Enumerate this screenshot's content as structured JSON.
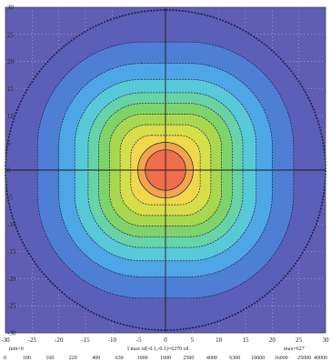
{
  "chart_data": {
    "type": "heatmap",
    "description_free": true,
    "x_ticks": [
      "-30",
      "-25",
      "-20",
      "-15",
      "-10",
      "-5",
      "0",
      "5",
      "10",
      "15",
      "20",
      "25",
      "30"
    ],
    "y_ticks": [
      "30",
      "25",
      "20",
      "15",
      "10",
      "5",
      "0",
      "-5",
      "-10",
      "-15",
      "-20",
      "-25",
      "-30"
    ],
    "xlim": [
      -30,
      30
    ],
    "ylim": [
      -30,
      30
    ],
    "grid": true,
    "min_label": "min=0",
    "max_label": "max=627",
    "footer_caption": "I max of(-0.1,-0.1)=6270 cd",
    "colorbar_labels": [
      "0",
      "100",
      "160",
      "220",
      "400",
      "630",
      "1000",
      "1600",
      "2500",
      "4000",
      "6300",
      "10000",
      "16000",
      "25000",
      "40000"
    ],
    "levels": [
      {
        "color": "#5b5fb8",
        "radius": 30
      },
      {
        "color": "#4f7fd4",
        "radius": 24
      },
      {
        "color": "#4ea6e6",
        "radius": 20
      },
      {
        "color": "#58c9d8",
        "radius": 17
      },
      {
        "color": "#67d3a6",
        "radius": 14.5
      },
      {
        "color": "#7fd36b",
        "radius": 12.5
      },
      {
        "color": "#a8d84e",
        "radius": 10.5
      },
      {
        "color": "#d6df4a",
        "radius": 8.5
      },
      {
        "color": "#f1d84a",
        "radius": 6.5
      },
      {
        "color": "#f4a54b",
        "radius": 5.2
      },
      {
        "color": "#f06d4d",
        "radius": 3.8
      }
    ],
    "colors": {
      "background": "#5f5db4",
      "grid": "#bdbde6",
      "axis": "#1a1a1a",
      "contour": "#1c1c4a"
    }
  }
}
